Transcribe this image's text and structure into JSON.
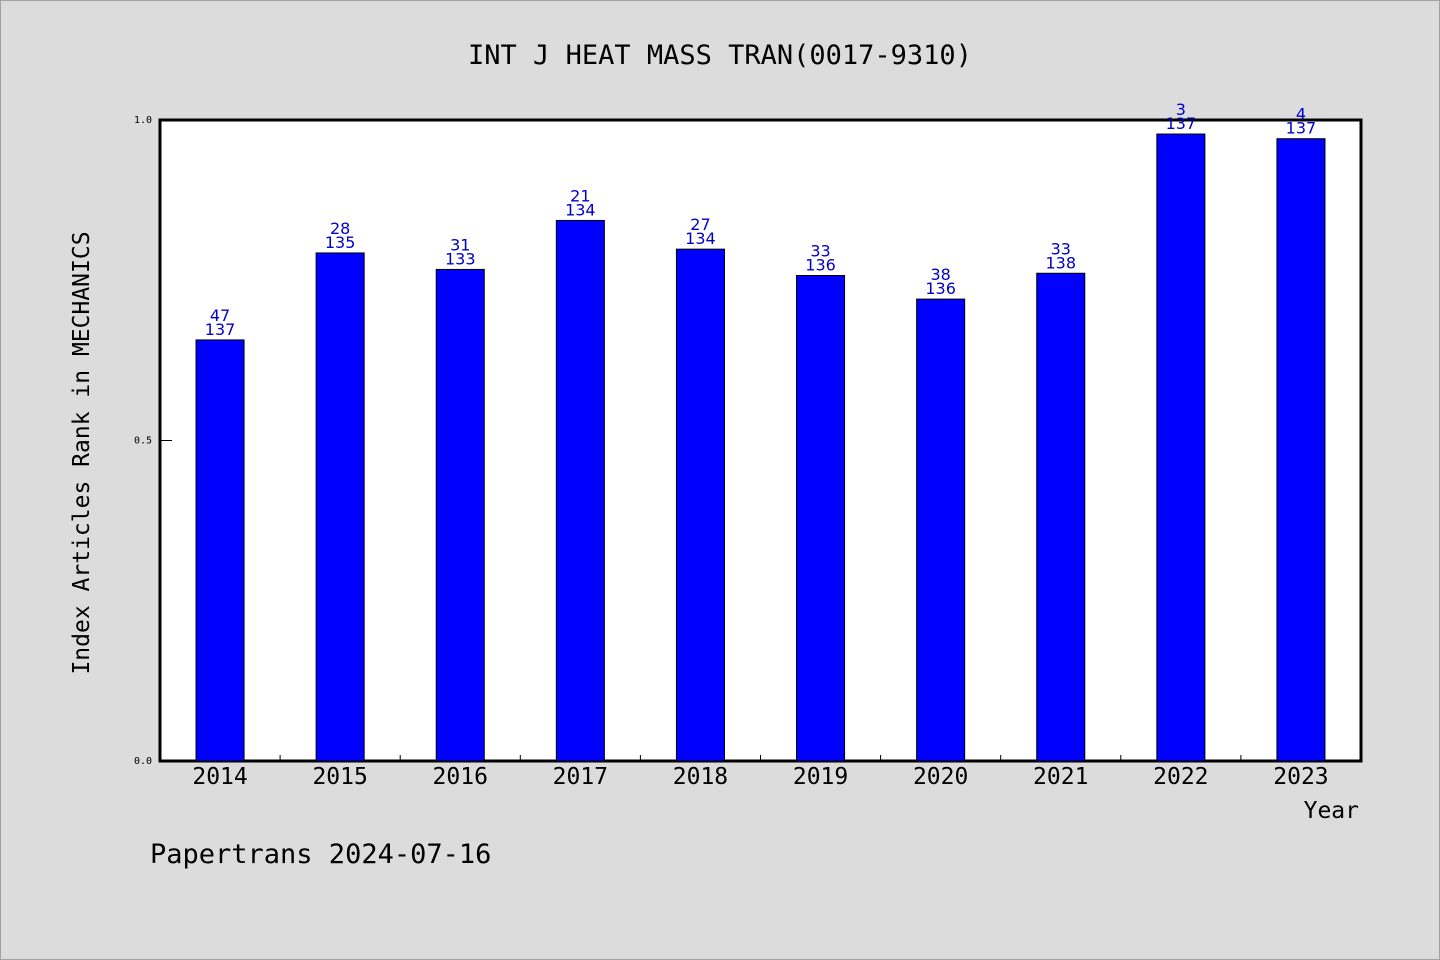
{
  "chart_data": {
    "type": "bar",
    "title": "INT J HEAT MASS TRAN(0017-9310)",
    "xlabel": "Year",
    "ylabel": "Index Articles Rank in MECHANICS",
    "ylim": [
      0,
      1.0
    ],
    "yticks": [
      "0.0",
      "0.5",
      "1.0"
    ],
    "categories": [
      "2014",
      "2015",
      "2016",
      "2017",
      "2018",
      "2019",
      "2020",
      "2021",
      "2022",
      "2023"
    ],
    "values": [
      0.6569,
      0.7926,
      0.7669,
      0.8433,
      0.7985,
      0.7574,
      0.7206,
      0.7609,
      0.9781,
      0.9708
    ],
    "rank": [
      "47",
      "28",
      "31",
      "21",
      "27",
      "33",
      "38",
      "33",
      "3",
      "4"
    ],
    "total": [
      "137",
      "135",
      "133",
      "134",
      "134",
      "136",
      "136",
      "138",
      "137",
      "137"
    ],
    "bar_color": "#0000ff",
    "label_color": "#0000cc",
    "grid": false,
    "legend": "none"
  },
  "footer": "Papertrans 2024-07-16"
}
